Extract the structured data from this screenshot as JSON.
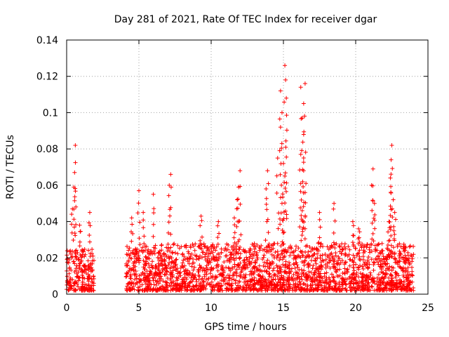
{
  "chart_data": {
    "type": "scatter",
    "title": "Day 281 of 2021, Rate Of TEC Index for receiver dgar",
    "xlabel": "GPS time / hours",
    "ylabel": "ROTI / TECUs",
    "xlim": [
      0,
      25
    ],
    "ylim": [
      0,
      0.14
    ],
    "xticks": [
      0,
      5,
      10,
      15,
      20,
      25
    ],
    "xtick_labels": [
      "0",
      "5",
      "10",
      "15",
      "20",
      "25"
    ],
    "yticks": [
      0,
      0.02,
      0.04,
      0.06,
      0.08,
      0.1,
      0.12,
      0.14
    ],
    "ytick_labels": [
      "0",
      "0.02",
      "0.04",
      "0.06",
      "0.08",
      "0.1",
      "0.12",
      "0.14"
    ],
    "grid": true,
    "marker": "+",
    "color": "#ff0000",
    "series": [
      {
        "name": "ROTI",
        "segments": [
          {
            "x_start": 0.0,
            "x_end": 1.9,
            "baseline_low": 0.002,
            "baseline_high": 0.025
          },
          {
            "x_start": 4.1,
            "x_end": 24.0,
            "baseline_low": 0.002,
            "baseline_high": 0.028
          }
        ],
        "peaks": [
          {
            "x": 0.6,
            "y": 0.082
          },
          {
            "x": 0.55,
            "y": 0.067
          },
          {
            "x": 0.5,
            "y": 0.059
          },
          {
            "x": 0.4,
            "y": 0.047
          },
          {
            "x": 0.9,
            "y": 0.038
          },
          {
            "x": 1.6,
            "y": 0.045
          },
          {
            "x": 4.5,
            "y": 0.042
          },
          {
            "x": 5.0,
            "y": 0.057
          },
          {
            "x": 5.3,
            "y": 0.045
          },
          {
            "x": 6.0,
            "y": 0.055
          },
          {
            "x": 7.2,
            "y": 0.066
          },
          {
            "x": 7.1,
            "y": 0.06
          },
          {
            "x": 9.3,
            "y": 0.043
          },
          {
            "x": 10.5,
            "y": 0.04
          },
          {
            "x": 11.6,
            "y": 0.042
          },
          {
            "x": 12.0,
            "y": 0.068
          },
          {
            "x": 11.9,
            "y": 0.059
          },
          {
            "x": 11.8,
            "y": 0.052
          },
          {
            "x": 13.9,
            "y": 0.068
          },
          {
            "x": 13.8,
            "y": 0.058
          },
          {
            "x": 14.6,
            "y": 0.075
          },
          {
            "x": 14.8,
            "y": 0.092
          },
          {
            "x": 14.9,
            "y": 0.1
          },
          {
            "x": 14.8,
            "y": 0.112
          },
          {
            "x": 15.1,
            "y": 0.126
          },
          {
            "x": 15.15,
            "y": 0.118
          },
          {
            "x": 15.2,
            "y": 0.108
          },
          {
            "x": 15.0,
            "y": 0.072
          },
          {
            "x": 15.1,
            "y": 0.065
          },
          {
            "x": 14.9,
            "y": 0.05
          },
          {
            "x": 16.2,
            "y": 0.114
          },
          {
            "x": 16.5,
            "y": 0.116
          },
          {
            "x": 16.4,
            "y": 0.105
          },
          {
            "x": 16.3,
            "y": 0.097
          },
          {
            "x": 16.4,
            "y": 0.088
          },
          {
            "x": 16.2,
            "y": 0.077
          },
          {
            "x": 16.4,
            "y": 0.068
          },
          {
            "x": 16.5,
            "y": 0.056
          },
          {
            "x": 16.3,
            "y": 0.046
          },
          {
            "x": 17.5,
            "y": 0.045
          },
          {
            "x": 18.5,
            "y": 0.05
          },
          {
            "x": 19.8,
            "y": 0.04
          },
          {
            "x": 20.2,
            "y": 0.036
          },
          {
            "x": 21.2,
            "y": 0.069
          },
          {
            "x": 21.1,
            "y": 0.06
          },
          {
            "x": 21.3,
            "y": 0.05
          },
          {
            "x": 22.3,
            "y": 0.04
          },
          {
            "x": 22.5,
            "y": 0.082
          },
          {
            "x": 22.45,
            "y": 0.074
          },
          {
            "x": 22.4,
            "y": 0.064
          },
          {
            "x": 22.6,
            "y": 0.052
          },
          {
            "x": 22.7,
            "y": 0.045
          }
        ]
      }
    ]
  }
}
